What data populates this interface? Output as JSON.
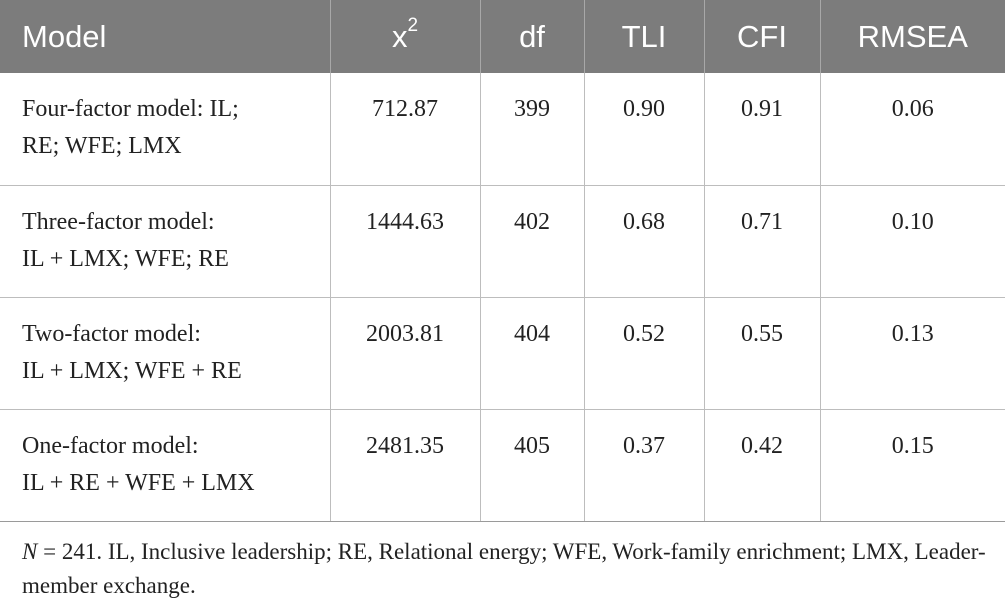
{
  "table": {
    "headers": {
      "model": "Model",
      "x2_base": "x",
      "x2_sup": "2",
      "df": "df",
      "tli": "TLI",
      "cfi": "CFI",
      "rmsea": "RMSEA"
    },
    "rows": [
      {
        "model_line1": "Four-factor model: IL;",
        "model_line2": "RE; WFE; LMX",
        "x2": "712.87",
        "df": "399",
        "tli": "0.90",
        "cfi": "0.91",
        "rmsea": "0.06"
      },
      {
        "model_line1": "Three-factor model:",
        "model_line2": "IL + LMX; WFE; RE",
        "x2": "1444.63",
        "df": "402",
        "tli": "0.68",
        "cfi": "0.71",
        "rmsea": "0.10"
      },
      {
        "model_line1": "Two-factor model:",
        "model_line2": "IL + LMX; WFE + RE",
        "x2": "2003.81",
        "df": "404",
        "tli": "0.52",
        "cfi": "0.55",
        "rmsea": "0.13"
      },
      {
        "model_line1": "One-factor model:",
        "model_line2": "IL + RE + WFE + LMX",
        "x2": "2481.35",
        "df": "405",
        "tli": "0.37",
        "cfi": "0.42",
        "rmsea": "0.15"
      }
    ]
  },
  "footnote": {
    "n_var": "N",
    "text": " = 241. IL, Inclusive leadership; RE, Relational energy; WFE, Work-family enrichment; LMX, Leader-member exchange."
  },
  "colors": {
    "header_background": "#7c7c7c",
    "header_text": "#ffffff",
    "grid_lines": "#bdbdbd"
  }
}
